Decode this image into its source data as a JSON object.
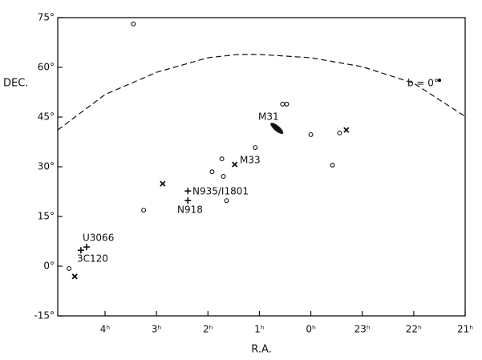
{
  "chart_data": {
    "type": "scatter",
    "xlabel": "R.A.",
    "ylabel": "DEC.",
    "xlim": [
      4.92,
      -3
    ],
    "ylim": [
      -15,
      75
    ],
    "xticks": [
      {
        "value": 4,
        "label": "4ʰ"
      },
      {
        "value": 3,
        "label": "3ʰ"
      },
      {
        "value": 2,
        "label": "2ʰ"
      },
      {
        "value": 1,
        "label": "1ʰ"
      },
      {
        "value": 0,
        "label": "0ʰ"
      },
      {
        "value": -1,
        "label": "23ʰ"
      },
      {
        "value": -2,
        "label": "22ʰ"
      },
      {
        "value": -3,
        "label": "21ʰ"
      }
    ],
    "yticks": [
      {
        "value": 75,
        "label": "75°"
      },
      {
        "value": 60,
        "label": "60°"
      },
      {
        "value": 45,
        "label": "45°"
      },
      {
        "value": 30,
        "label": "30°"
      },
      {
        "value": 15,
        "label": "15°"
      },
      {
        "value": 0,
        "label": "0°"
      },
      {
        "value": -15,
        "label": "-15°"
      }
    ],
    "color": "#111111",
    "series": [
      {
        "marker": "circle",
        "x": [
          3.45,
          0.55,
          0.47,
          1.08,
          0.0,
          -0.56,
          -0.42,
          1.73,
          1.92,
          1.7,
          1.64,
          3.25,
          4.7
        ],
        "values": [
          73.1,
          48.9,
          48.9,
          35.8,
          39.7,
          40.2,
          30.5,
          32.4,
          28.5,
          27.1,
          19.8,
          16.9,
          -0.7
        ]
      },
      {
        "marker": "x",
        "x": [
          2.88,
          1.48,
          -0.69,
          4.59
        ],
        "values": [
          24.9,
          30.7,
          41.1,
          -3.1
        ]
      },
      {
        "marker": "plus",
        "x": [
          2.39,
          2.39,
          4.36,
          4.47
        ],
        "values": [
          22.7,
          19.8,
          5.8,
          4.8
        ]
      },
      {
        "marker": "ellipse",
        "x": [
          0.66
        ],
        "values": [
          41.6
        ]
      },
      {
        "marker": "dot",
        "x": [
          -2.5
        ],
        "values": [
          56.1
        ]
      },
      {
        "marker": "dashed-line",
        "x": [
          4.92,
          4,
          3,
          2,
          1.41,
          1,
          0,
          -1,
          -2,
          -3
        ],
        "values": [
          41.1,
          51.8,
          58.5,
          62.9,
          63.9,
          63.9,
          62.9,
          60.2,
          55.2,
          45.2
        ]
      }
    ],
    "annotations": [
      "M31",
      "M33",
      "N935/I1801",
      "N918",
      "U3066",
      "3C120",
      "b = 0°"
    ]
  }
}
